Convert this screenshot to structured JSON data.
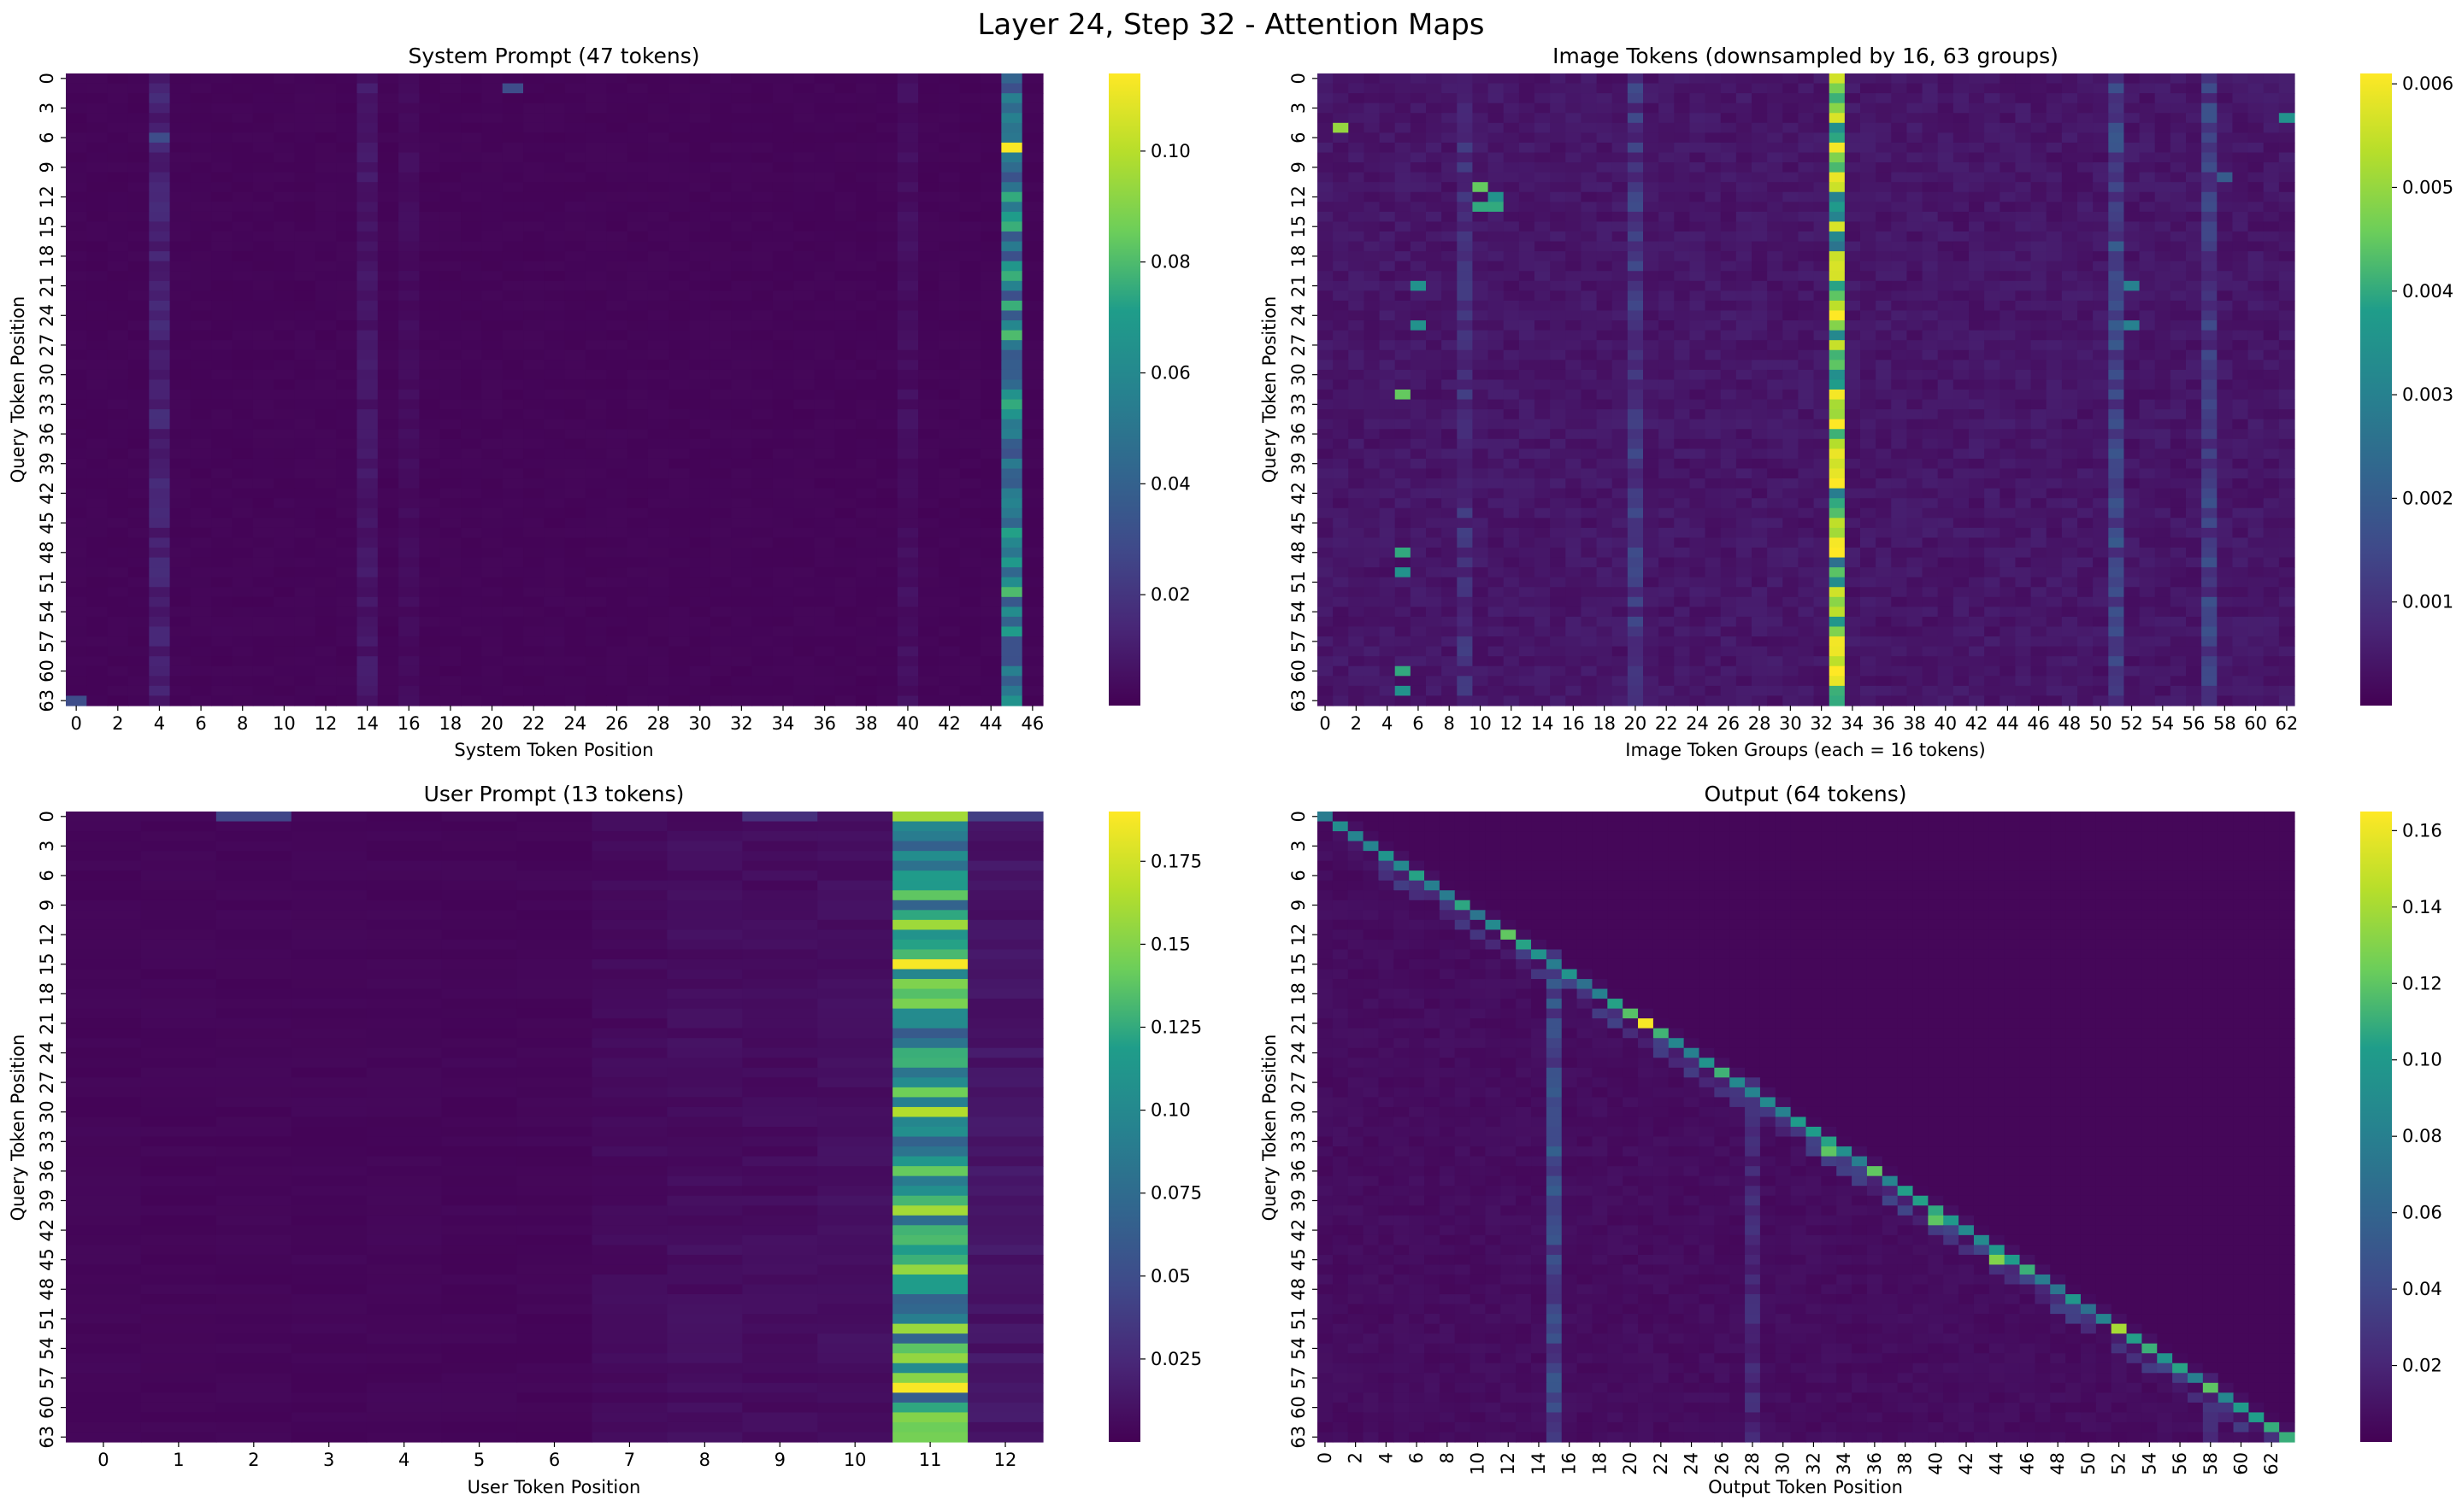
{
  "figure": {
    "title": "Layer 24, Step 32 - Attention Maps"
  },
  "colormap": {
    "name": "viridis",
    "stops": [
      "#440154",
      "#482777",
      "#3f4a8a",
      "#31678e",
      "#26838f",
      "#1f9d8a",
      "#6cce5a",
      "#b6de2b",
      "#fee825"
    ]
  },
  "chart_data": [
    {
      "type": "heatmap",
      "title": "System Prompt (47 tokens)",
      "xlabel": "System Token Position",
      "ylabel": "Query Token Position",
      "n_cols": 47,
      "n_rows": 64,
      "x_tick_labels": [
        "0",
        "2",
        "4",
        "6",
        "8",
        "10",
        "12",
        "14",
        "16",
        "18",
        "20",
        "22",
        "24",
        "26",
        "28",
        "30",
        "32",
        "34",
        "36",
        "38",
        "40",
        "42",
        "44",
        "46"
      ],
      "y_tick_labels": [
        "0",
        "3",
        "6",
        "9",
        "12",
        "15",
        "18",
        "21",
        "24",
        "27",
        "30",
        "33",
        "36",
        "39",
        "42",
        "45",
        "48",
        "51",
        "54",
        "57",
        "60",
        "63"
      ],
      "colorbar_ticks": [
        0.02,
        0.04,
        0.06,
        0.08,
        0.1
      ],
      "vmin": 0.0,
      "vmax": 0.114,
      "base_value": 0.0015,
      "column_profile": [
        {
          "col": 4,
          "value": 0.012
        },
        {
          "col": 14,
          "value": 0.008
        },
        {
          "col": 16,
          "value": 0.004
        },
        {
          "col": 40,
          "value": 0.005
        },
        {
          "col": 45,
          "value": 0.055
        }
      ],
      "hotspots": [
        {
          "row": 7,
          "col": 45,
          "value": 0.113
        },
        {
          "row": 1,
          "col": 21,
          "value": 0.03
        },
        {
          "row": 63,
          "col": 0,
          "value": 0.03
        },
        {
          "row": 6,
          "col": 4,
          "value": 0.03
        },
        {
          "row": 12,
          "col": 45,
          "value": 0.075
        },
        {
          "row": 26,
          "col": 45,
          "value": 0.08
        },
        {
          "row": 33,
          "col": 45,
          "value": 0.075
        },
        {
          "row": 52,
          "col": 45,
          "value": 0.08
        }
      ]
    },
    {
      "type": "heatmap",
      "title": "Image Tokens (downsampled by 16, 63 groups)",
      "xlabel": "Image Token Groups (each = 16 tokens)",
      "ylabel": "Query Token Position",
      "n_cols": 63,
      "n_rows": 64,
      "x_tick_labels": [
        "0",
        "2",
        "4",
        "6",
        "8",
        "10",
        "12",
        "14",
        "16",
        "18",
        "20",
        "22",
        "24",
        "26",
        "28",
        "30",
        "32",
        "34",
        "36",
        "38",
        "40",
        "42",
        "44",
        "46",
        "48",
        "50",
        "52",
        "54",
        "56",
        "58",
        "60",
        "62"
      ],
      "y_tick_labels": [
        "0",
        "3",
        "6",
        "9",
        "12",
        "15",
        "18",
        "21",
        "24",
        "27",
        "30",
        "33",
        "36",
        "39",
        "42",
        "45",
        "48",
        "51",
        "54",
        "57",
        "60",
        "63"
      ],
      "colorbar_ticks": [
        0.001,
        0.002,
        0.003,
        0.004,
        0.005,
        0.006
      ],
      "vmin": 0.0,
      "vmax": 0.0061,
      "base_value": 0.0004,
      "column_profile": [
        {
          "col": 9,
          "value": 0.0009
        },
        {
          "col": 20,
          "value": 0.0011
        },
        {
          "col": 33,
          "value": 0.0045
        },
        {
          "col": 51,
          "value": 0.0014
        },
        {
          "col": 57,
          "value": 0.0012
        }
      ],
      "hotspots": [
        {
          "row": 7,
          "col": 33,
          "value": 0.006
        },
        {
          "row": 32,
          "col": 33,
          "value": 0.006
        },
        {
          "row": 5,
          "col": 1,
          "value": 0.005
        },
        {
          "row": 11,
          "col": 10,
          "value": 0.0045
        },
        {
          "row": 13,
          "col": 10,
          "value": 0.004
        },
        {
          "row": 13,
          "col": 11,
          "value": 0.004
        },
        {
          "row": 12,
          "col": 11,
          "value": 0.0035
        },
        {
          "row": 21,
          "col": 6,
          "value": 0.0035
        },
        {
          "row": 25,
          "col": 6,
          "value": 0.0035
        },
        {
          "row": 32,
          "col": 5,
          "value": 0.0045
        },
        {
          "row": 48,
          "col": 5,
          "value": 0.004
        },
        {
          "row": 50,
          "col": 5,
          "value": 0.0035
        },
        {
          "row": 60,
          "col": 5,
          "value": 0.004
        },
        {
          "row": 62,
          "col": 5,
          "value": 0.0035
        },
        {
          "row": 4,
          "col": 62,
          "value": 0.0035
        },
        {
          "row": 21,
          "col": 52,
          "value": 0.003
        },
        {
          "row": 25,
          "col": 52,
          "value": 0.003
        },
        {
          "row": 10,
          "col": 58,
          "value": 0.002
        }
      ]
    },
    {
      "type": "heatmap",
      "title": "User Prompt (13 tokens)",
      "xlabel": "User Token Position",
      "ylabel": "Query Token Position",
      "n_cols": 13,
      "n_rows": 64,
      "x_tick_labels": [
        "0",
        "1",
        "2",
        "3",
        "4",
        "5",
        "6",
        "7",
        "8",
        "9",
        "10",
        "11",
        "12"
      ],
      "y_tick_labels": [
        "0",
        "3",
        "6",
        "9",
        "12",
        "15",
        "18",
        "21",
        "24",
        "27",
        "30",
        "33",
        "36",
        "39",
        "42",
        "45",
        "48",
        "51",
        "54",
        "57",
        "60",
        "63"
      ],
      "colorbar_ticks": [
        0.025,
        0.05,
        0.075,
        0.1,
        0.125,
        0.15,
        0.175
      ],
      "vmin": 0.0,
      "vmax": 0.19,
      "base_value": 0.003,
      "column_profile": [
        {
          "col": 7,
          "value": 0.006
        },
        {
          "col": 8,
          "value": 0.008
        },
        {
          "col": 9,
          "value": 0.007
        },
        {
          "col": 10,
          "value": 0.008
        },
        {
          "col": 11,
          "value": 0.11
        },
        {
          "col": 12,
          "value": 0.012
        }
      ],
      "hotspots": [
        {
          "row": 15,
          "col": 11,
          "value": 0.188
        },
        {
          "row": 58,
          "col": 11,
          "value": 0.188
        },
        {
          "row": 30,
          "col": 11,
          "value": 0.165
        },
        {
          "row": 40,
          "col": 11,
          "value": 0.16
        },
        {
          "row": 55,
          "col": 11,
          "value": 0.155
        },
        {
          "row": 61,
          "col": 11,
          "value": 0.15
        },
        {
          "row": 0,
          "col": 11,
          "value": 0.16
        },
        {
          "row": 0,
          "col": 2,
          "value": 0.045
        },
        {
          "row": 0,
          "col": 9,
          "value": 0.03
        },
        {
          "row": 0,
          "col": 12,
          "value": 0.04
        }
      ]
    },
    {
      "type": "heatmap",
      "title": "Output (64 tokens)",
      "xlabel": "Output Token Position",
      "ylabel": "Query Token Position",
      "n_cols": 64,
      "n_rows": 64,
      "x_tick_labels": [
        "0",
        "2",
        "4",
        "6",
        "8",
        "10",
        "12",
        "14",
        "16",
        "18",
        "20",
        "22",
        "24",
        "26",
        "28",
        "30",
        "32",
        "34",
        "36",
        "38",
        "40",
        "42",
        "44",
        "46",
        "48",
        "50",
        "52",
        "54",
        "56",
        "58",
        "60",
        "62"
      ],
      "y_tick_labels": [
        "0",
        "3",
        "6",
        "9",
        "12",
        "15",
        "18",
        "21",
        "24",
        "27",
        "30",
        "33",
        "36",
        "39",
        "42",
        "45",
        "48",
        "51",
        "54",
        "57",
        "60",
        "63"
      ],
      "colorbar_ticks": [
        0.02,
        0.04,
        0.06,
        0.08,
        0.1,
        0.12,
        0.14,
        0.16
      ],
      "vmin": 0.0,
      "vmax": 0.165,
      "base_value": 0.006,
      "diagonal_value": 0.11,
      "column_profile": [
        {
          "col": 15,
          "value": 0.04
        },
        {
          "col": 28,
          "value": 0.02
        },
        {
          "col": 58,
          "value": 0.02
        }
      ],
      "hotspots": [
        {
          "row": 21,
          "col": 21,
          "value": 0.163
        },
        {
          "row": 34,
          "col": 33,
          "value": 0.12
        },
        {
          "row": 45,
          "col": 44,
          "value": 0.13
        },
        {
          "row": 52,
          "col": 52,
          "value": 0.14
        },
        {
          "row": 63,
          "col": 63,
          "value": 0.11
        },
        {
          "row": 58,
          "col": 58,
          "value": 0.12
        },
        {
          "row": 41,
          "col": 40,
          "value": 0.12
        }
      ]
    }
  ]
}
